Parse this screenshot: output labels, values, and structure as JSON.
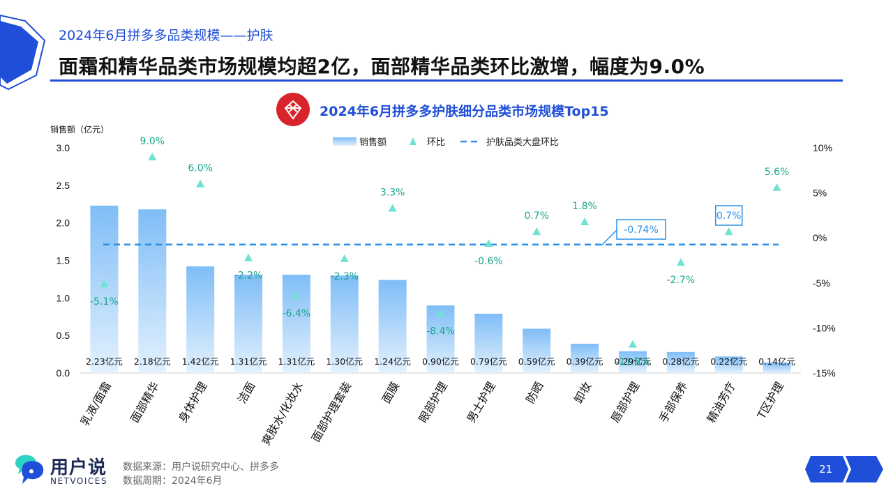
{
  "header": {
    "subtitle": "2024年6月拼多多品类规模——护肤",
    "headline": "面霜和精华品类市场规模均超2亿，面部精华品类环比激增，幅度为9.0%"
  },
  "chart_title": "2024年6月拼多多护肤细分品类市场规模Top15",
  "footer": {
    "source": "数据来源：用户说研究中心、拼多多",
    "period": "数据周期：2024年6月",
    "brand_name": "用户说",
    "brand_sub": "NETVOICES",
    "page_number": "21"
  },
  "colors": {
    "accent": "#1f4ed8",
    "bar_top": "#7fbdf7",
    "bar_bottom": "#e3f1fd",
    "marker": "#6fe3cf",
    "label_green": "#1aa58a",
    "dashed_line": "#2a8fe8"
  },
  "chart_data": {
    "type": "bar",
    "categories": [
      "乳液/面霜",
      "面部精华",
      "身体护理",
      "洁面",
      "爽肤水/化妆水",
      "面部护理套装",
      "面膜",
      "眼部护理",
      "男士护理",
      "防晒",
      "卸妆",
      "唇部护理",
      "手部保养",
      "精油芳疗",
      "T区护理"
    ],
    "series": [
      {
        "name": "销售额",
        "axis": "left",
        "values": [
          2.23,
          2.18,
          1.42,
          1.31,
          1.31,
          1.3,
          1.24,
          0.9,
          0.79,
          0.59,
          0.39,
          0.29,
          0.28,
          0.22,
          0.14
        ]
      },
      {
        "name": "环比",
        "axis": "right",
        "type": "scatter",
        "values": [
          -5.1,
          9.0,
          6.0,
          -2.2,
          -6.4,
          -2.3,
          3.3,
          -8.4,
          -0.6,
          0.7,
          1.8,
          -11.8,
          -2.7,
          0.7,
          5.6
        ]
      }
    ],
    "bar_labels": [
      "2.23亿元",
      "2.18亿元",
      "1.42亿元",
      "1.31亿元",
      "1.31亿元",
      "1.30亿元",
      "1.24亿元",
      "0.90亿元",
      "0.79亿元",
      "0.59亿元",
      "0.39亿元",
      "0.29亿元",
      "0.28亿元",
      "0.22亿元",
      "0.14亿元"
    ],
    "mom_labels": [
      "-5.1%",
      "9.0%",
      "6.0%",
      "-2.2%",
      "-6.4%",
      "-2.3%",
      "3.3%",
      "-8.4%",
      "-0.6%",
      "0.7%",
      "1.8%",
      "-11.8%",
      "-2.7%",
      "0.7%",
      "5.6%"
    ],
    "reference_line": {
      "name": "护肤品类大盘环比",
      "value": -0.74,
      "label": "-0.74%"
    },
    "ylabel": "销售额（亿元）",
    "ylim": [
      0,
      3.0
    ],
    "yticks": [
      "0.0",
      "0.5",
      "1.0",
      "1.5",
      "2.0",
      "2.5",
      "3.0"
    ],
    "y2lim": [
      -15,
      10
    ],
    "y2ticks": [
      "-15%",
      "-10%",
      "-5%",
      "0%",
      "5%",
      "10%"
    ],
    "legend": [
      "销售额",
      "环比",
      "护肤品类大盘环比"
    ],
    "legend_position": "top-center",
    "grid": false
  }
}
